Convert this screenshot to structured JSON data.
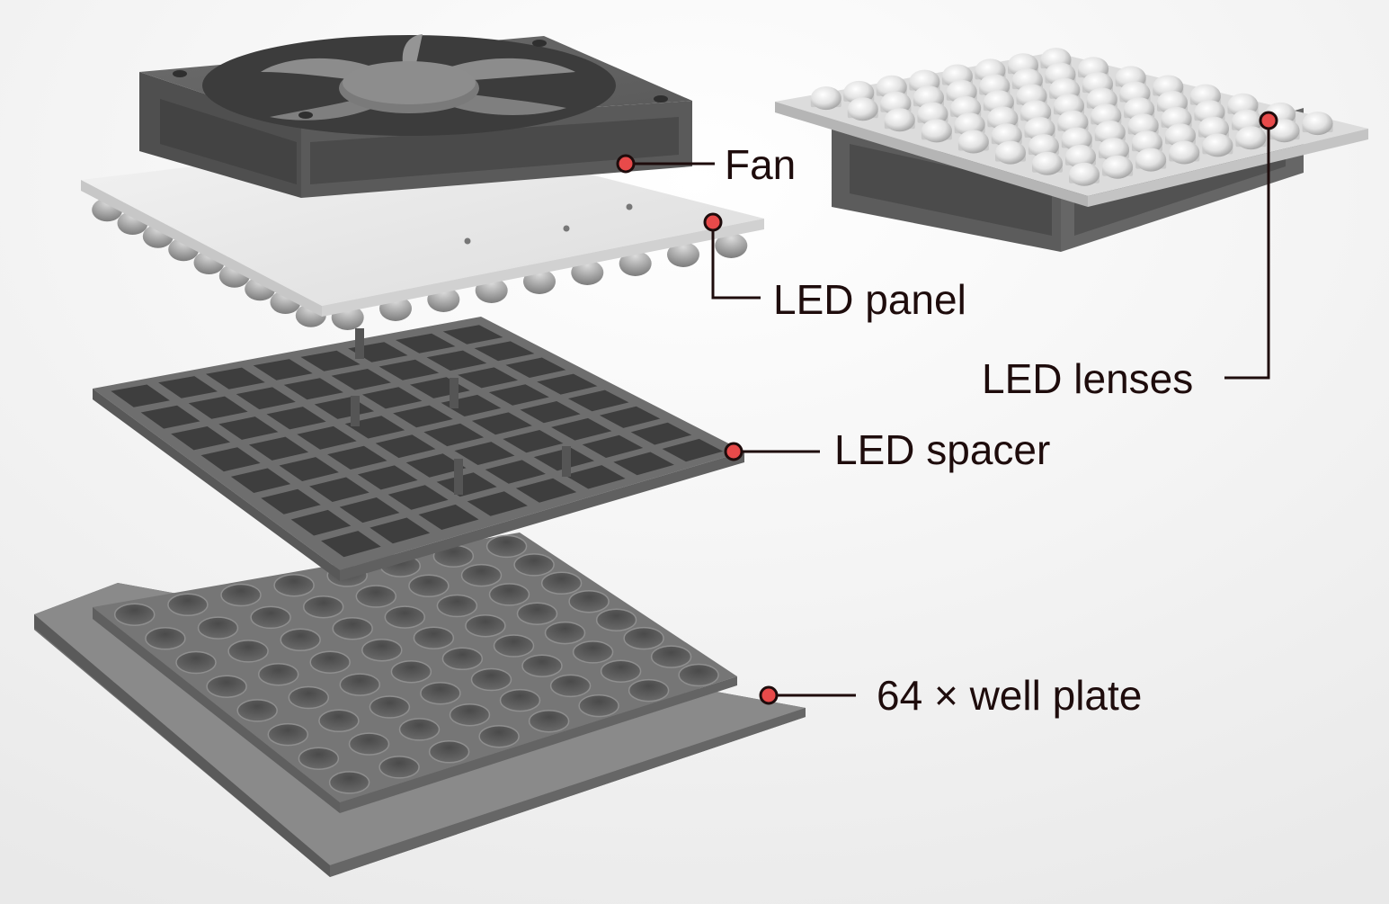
{
  "labels": {
    "fan": "Fan",
    "led_panel": "LED panel",
    "led_lenses": "LED lenses",
    "led_spacer": "LED spacer",
    "well_plate": "64 × well plate"
  },
  "grid": {
    "rows": 8,
    "cols": 8
  },
  "colors": {
    "marker": "#e84a4a",
    "text": "#1e0c0c",
    "dark_gray": "#5e5e5e",
    "mid_gray": "#7a7a7a",
    "light_panel": "#e6e6e6"
  }
}
